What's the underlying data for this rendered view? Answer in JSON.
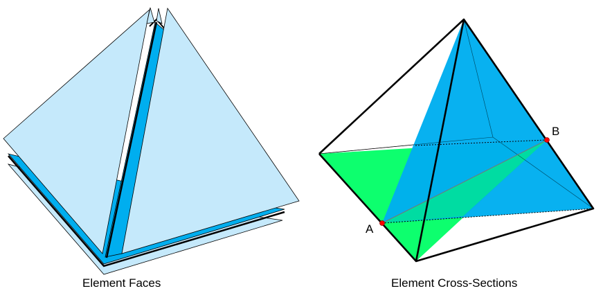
{
  "captions": {
    "left": "Element Faces",
    "right": "Element Cross-Sections"
  },
  "points": {
    "a": "A",
    "b": "B"
  },
  "colors": {
    "face_light": "#c5e9fb",
    "face_blue": "#00aeef",
    "section_green": "#00ff66",
    "point_red": "#ff0000",
    "edge": "#000000"
  }
}
